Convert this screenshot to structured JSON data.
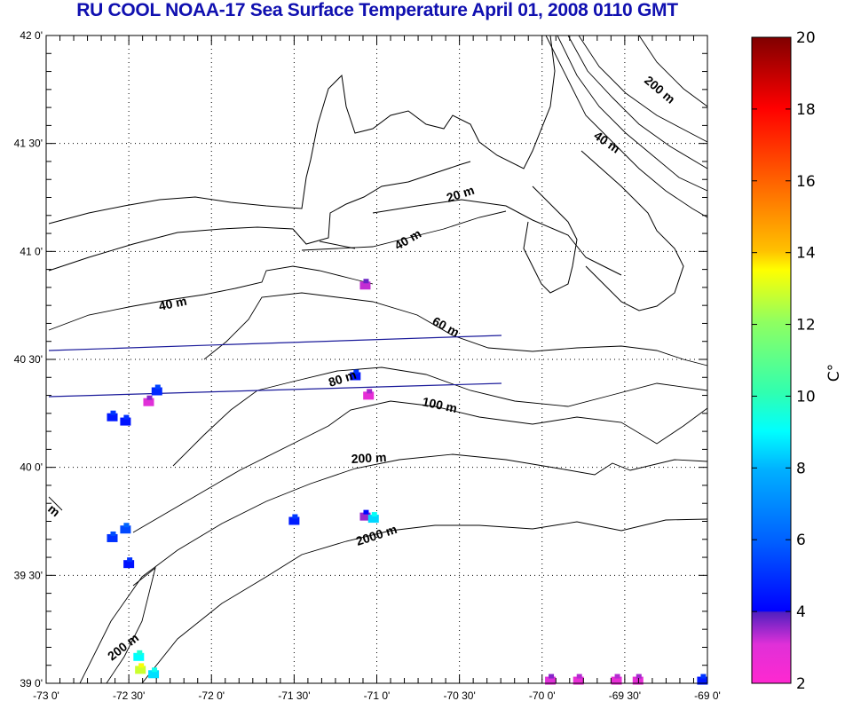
{
  "title": "RU COOL  NOAA-17 Sea Surface Temperature April 01, 2008 0110 GMT",
  "map": {
    "lon_range": [
      -73,
      -69
    ],
    "lat_range": [
      39,
      42
    ],
    "lat_labels": [
      "42 0'",
      "41 30'",
      "41 0'",
      "40 30'",
      "40 0'",
      "39 30'",
      "39 0'"
    ],
    "lon_labels": [
      "-73 0'",
      "-72 30'",
      "-72 0'",
      "-71 30'",
      "-71 0'",
      "-70 30'",
      "-70 0'",
      "-69 30'",
      "-69 0'"
    ],
    "contour_labels": [
      "200 m",
      "40 m",
      "20 m",
      "40 m",
      "40 m",
      "60 m",
      "80 m",
      "100 m",
      "200 m",
      "2000 m",
      "200 m",
      "m"
    ],
    "sst_patches": [
      {
        "lon": -71.07,
        "lat": 40.84,
        "temp": 3.2
      },
      {
        "lon": -71.13,
        "lat": 40.42,
        "temp": 4.5
      },
      {
        "lon": -71.05,
        "lat": 40.33,
        "temp": 2.8
      },
      {
        "lon": -72.33,
        "lat": 40.35,
        "temp": 4.8
      },
      {
        "lon": -72.38,
        "lat": 40.3,
        "temp": 3.0
      },
      {
        "lon": -72.6,
        "lat": 40.23,
        "temp": 4.5
      },
      {
        "lon": -72.52,
        "lat": 40.21,
        "temp": 4.4
      },
      {
        "lon": -71.5,
        "lat": 39.75,
        "temp": 4.6
      },
      {
        "lon": -71.07,
        "lat": 39.77,
        "temp": 3.5
      },
      {
        "lon": -71.02,
        "lat": 39.76,
        "temp": 8.5
      },
      {
        "lon": -72.6,
        "lat": 39.67,
        "temp": 5.0
      },
      {
        "lon": -72.52,
        "lat": 39.71,
        "temp": 5.5
      },
      {
        "lon": -72.5,
        "lat": 39.55,
        "temp": 4.4
      },
      {
        "lon": -72.43,
        "lat": 39.06,
        "temp": 12.8
      },
      {
        "lon": -72.44,
        "lat": 39.12,
        "temp": 9.0
      },
      {
        "lon": -72.35,
        "lat": 39.04,
        "temp": 8.6
      },
      {
        "lon": -69.95,
        "lat": 39.01,
        "temp": 3.0
      },
      {
        "lon": -69.78,
        "lat": 39.01,
        "temp": 2.7
      },
      {
        "lon": -69.55,
        "lat": 39.01,
        "temp": 2.7
      },
      {
        "lon": -69.42,
        "lat": 39.01,
        "temp": 2.8
      },
      {
        "lon": -69.03,
        "lat": 39.01,
        "temp": 4.5
      }
    ]
  },
  "colorbar": {
    "min": 2,
    "max": 20,
    "tick_labels": [
      "20",
      "18",
      "16",
      "14",
      "12",
      "10",
      "8",
      "6",
      "4",
      "2"
    ],
    "unit_label": "C°"
  }
}
